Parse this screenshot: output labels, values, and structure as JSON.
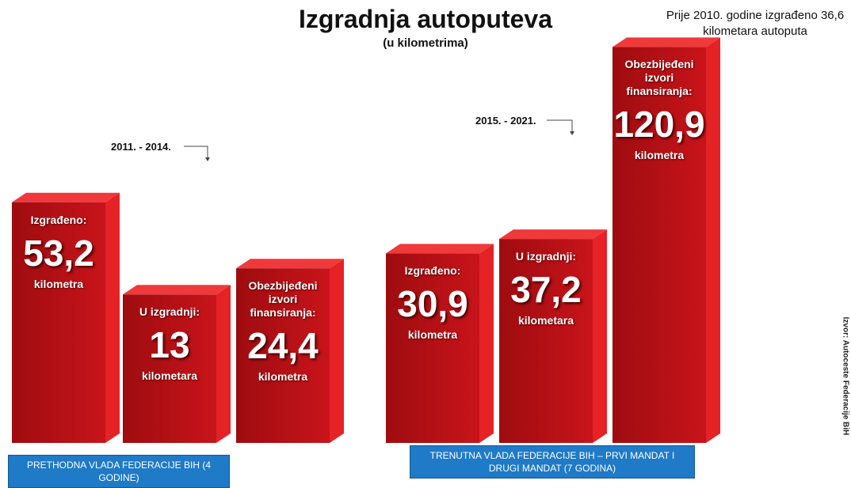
{
  "chart_data": {
    "type": "bar3d",
    "title": "Izgradnja autoputeva",
    "subtitle": "(u kilometrima)",
    "note": "Prije 2010. godine izgrađeno 36,6 kilometara autoputa",
    "source": "Izvor: Autoceste Federacije BiH",
    "color": "#c8141a",
    "groups": [
      {
        "period": "2011. - 2014.",
        "caption": "PRETHODNA VLADA FEDERACIJE BIH (4 GODINE)",
        "categories": [
          "Izgrađeno:",
          "U izgradnji:",
          "Obezbijeđeni izvori finansiranja:"
        ],
        "values": [
          53.2,
          13,
          24.4
        ],
        "value_labels": [
          "53,2",
          "13",
          "24,4"
        ],
        "units": [
          "kilometra",
          "kilometara",
          "kilometra"
        ]
      },
      {
        "period": "2015. - 2021.",
        "caption": "TRENUTNA VLADA FEDERACIJE BIH – PRVI MANDAT I DRUGI MANDAT (7 GODINA)",
        "categories": [
          "Izgrađeno:",
          "U izgradnji:",
          "Obezbijeđeni izvori finansiranja:"
        ],
        "values": [
          30.9,
          37.2,
          120.9
        ],
        "value_labels": [
          "30,9",
          "37,2",
          "120,9"
        ],
        "units": [
          "kilometra",
          "kilometara",
          "kilometra"
        ]
      }
    ]
  }
}
